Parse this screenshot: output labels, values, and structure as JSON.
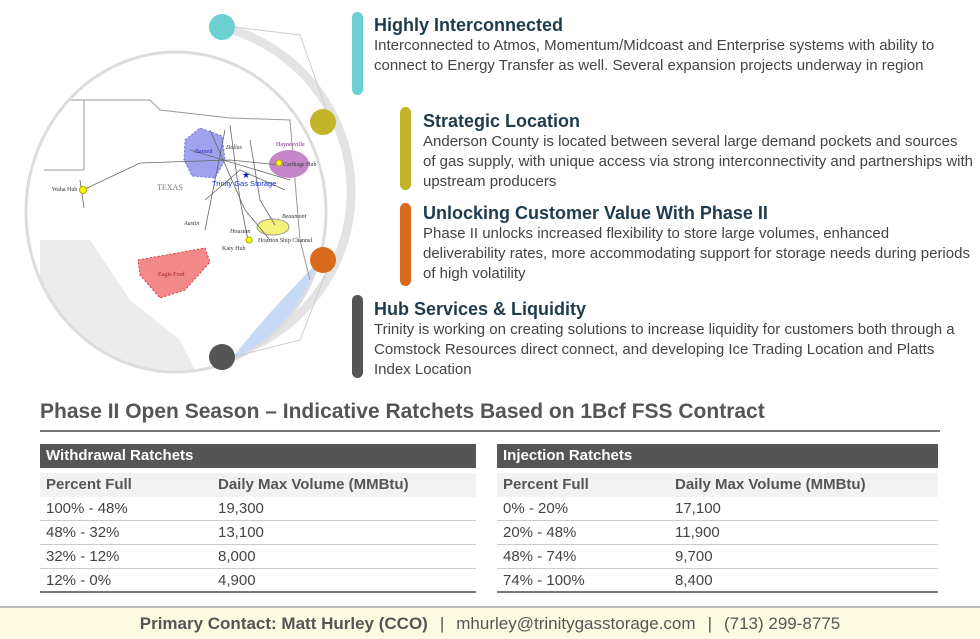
{
  "map": {
    "labels": {
      "waha": "Waha Hub",
      "texas": "TEXAS",
      "barnett": "Barnett",
      "dallas": "Dallas",
      "haynesville": "Haynesville",
      "carthage": "Carthage Hub",
      "trinity": "Trinity Gas Storage",
      "austin": "Austin",
      "houston": "Houston",
      "katy": "Katy Hub",
      "ship": "Houston Ship Channel",
      "beaumont": "Beaumont",
      "eagle": "Eagle Ford"
    }
  },
  "features": [
    {
      "title": "Highly Interconnected",
      "text": "Interconnected to Atmos, Momentum/Midcoast and Enterprise systems with ability to connect to Energy Transfer as well. Several expansion projects underway in region",
      "color": "#6ccfd1"
    },
    {
      "title": "Strategic Location",
      "text": "Anderson County is located between several large demand pockets and sources of gas supply, with unique access via strong interconnectivity and partnerships with upstream producers",
      "color": "#c3b42a"
    },
    {
      "title": "Unlocking Customer Value With Phase II",
      "text": "Phase II unlocks increased flexibility to store large volumes, enhanced deliverability rates, more accommodating support for storage needs during periods of high volatility",
      "color": "#d96a1c"
    },
    {
      "title": "Hub Services & Liquidity",
      "text": "Trinity is working on creating solutions to increase liquidity for customers both through a Comstock Resources direct connect, and developing Ice Trading Location and Platts Index Location",
      "color": "#555555"
    }
  ],
  "section_title": "Phase II Open Season – Indicative Ratchets Based on 1Bcf FSS Contract",
  "withdrawal": {
    "title": "Withdrawal Ratchets",
    "headers": [
      "Percent Full",
      "Daily Max Volume (MMBtu)"
    ],
    "rows": [
      [
        "100% - 48%",
        "19,300"
      ],
      [
        "48% - 32%",
        "13,100"
      ],
      [
        "32% - 12%",
        "8,000"
      ],
      [
        "12% - 0%",
        "4,900"
      ]
    ]
  },
  "injection": {
    "title": "Injection Ratchets",
    "headers": [
      "Percent Full",
      "Daily Max Volume (MMBtu)"
    ],
    "rows": [
      [
        "0% - 20%",
        "17,100"
      ],
      [
        "20% - 48%",
        "11,900"
      ],
      [
        "48% - 74%",
        "9,700"
      ],
      [
        "74% - 100%",
        "8,400"
      ]
    ]
  },
  "footer": {
    "contact": "Primary Contact: Matt Hurley (CCO)",
    "sep": "|",
    "email": "mhurley@trinitygasstorage.com",
    "phone": "(713) 299-8775"
  }
}
